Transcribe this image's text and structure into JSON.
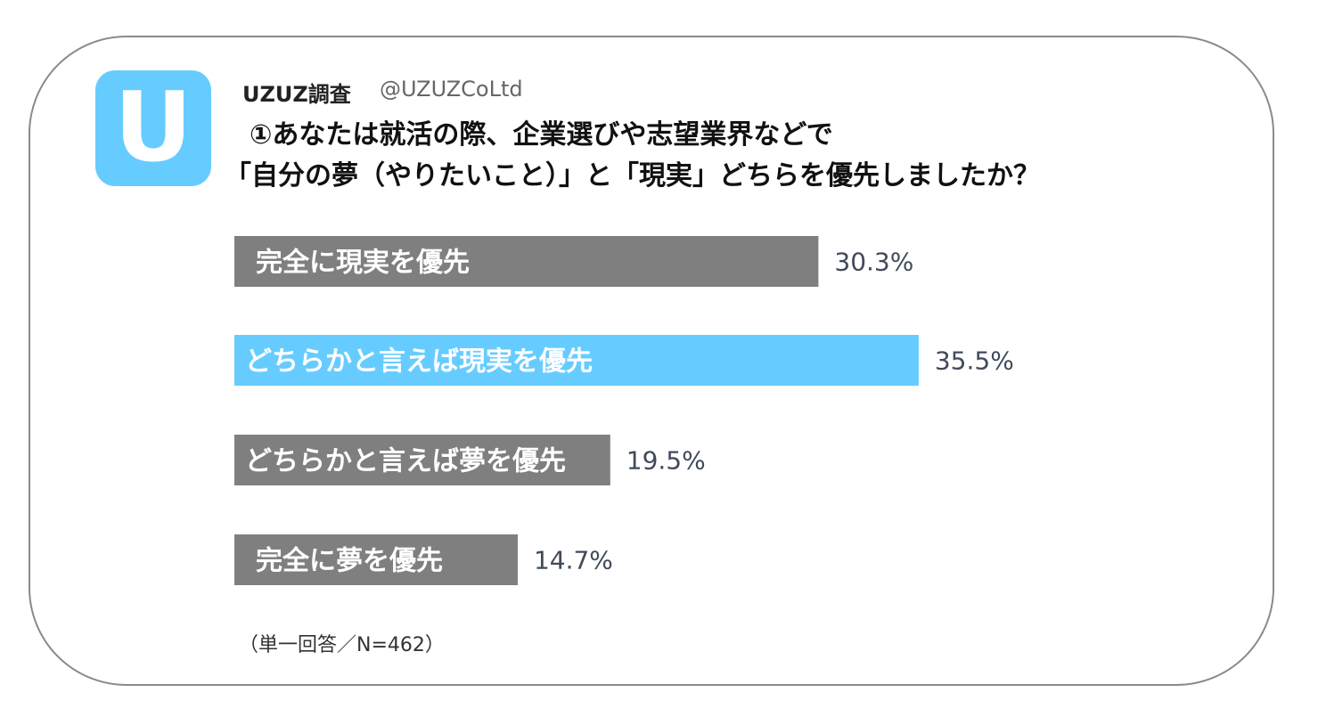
{
  "header": {
    "avatar_letter": "U",
    "account_name": "UZUZ調査",
    "account_handle": "@UZUZCoLtd",
    "question_line1": "①あなたは就活の際、企業選びや志望業界などで",
    "question_line2": "「自分の夢（やりたいこと）」と「現実」どちらを優先しましたか？"
  },
  "colors": {
    "highlight": "#66ccff",
    "default_bar": "#7f7f7f",
    "border": "#8a8a8a",
    "value_text": "#404a5a"
  },
  "chart_data": {
    "type": "bar",
    "orientation": "horizontal",
    "categories": [
      "完全に現実を優先",
      "どちらかと言えば現実を優先",
      "どちらかと言えば夢を優先",
      "完全に夢を優先"
    ],
    "values": [
      30.3,
      35.5,
      19.5,
      14.7
    ],
    "value_labels": [
      "30.3%",
      "35.5%",
      "19.5%",
      "14.7%"
    ],
    "highlight_index": 1,
    "unit": "%",
    "grid": false,
    "legend": "none"
  },
  "footnote": "（単一回答／N=462）"
}
